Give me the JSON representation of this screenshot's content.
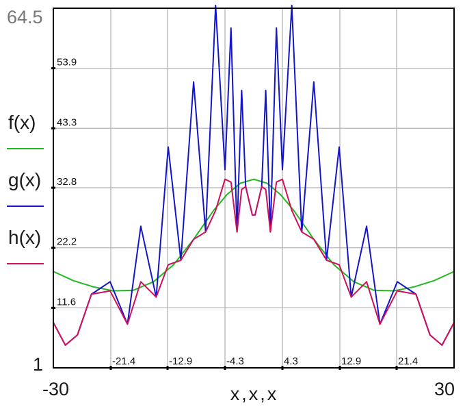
{
  "chart_data": {
    "type": "line",
    "title": "",
    "xlabel": "x,x,x",
    "xlim": [
      -30,
      30
    ],
    "ylim": [
      1,
      64.5
    ],
    "x_range_labels": {
      "min": "-30",
      "max": "30"
    },
    "y_range_labels": {
      "min": "1",
      "max": "64.5"
    },
    "x_ticks": [
      "-21.4",
      "-12.9",
      "-4.3",
      "4.3",
      "12.9",
      "21.4"
    ],
    "y_ticks": [
      "11.6",
      "22.2",
      "32.8",
      "43.3",
      "53.9"
    ],
    "grid": true,
    "legend_position": "left",
    "series": [
      {
        "name": "f(x)",
        "color": "#22b822",
        "x": [
          -30,
          -27,
          -24,
          -21,
          -18,
          -15,
          -12,
          -9,
          -6,
          -4,
          -2,
          0,
          2,
          4,
          6,
          9,
          12,
          15,
          18,
          21,
          24,
          27,
          30
        ],
        "y": [
          18.0,
          16.4,
          15.3,
          14.6,
          14.7,
          16.2,
          19.2,
          23.7,
          28.8,
          31.6,
          33.6,
          34.3,
          33.6,
          31.6,
          28.8,
          23.7,
          19.2,
          16.2,
          14.7,
          14.6,
          15.3,
          16.4,
          18.0
        ]
      },
      {
        "name": "g(x)",
        "color": "#1414c8",
        "x": [
          -30,
          -28.2,
          -26.4,
          -24.3,
          -21.5,
          -18.9,
          -16.9,
          -14.6,
          -12.8,
          -10.9,
          -9.0,
          -7.2,
          -5.7,
          -4.3,
          -3.4,
          -2.5,
          -1.8,
          -1.2,
          -0.2,
          0.2,
          1.2,
          1.8,
          2.5,
          3.4,
          4.3,
          5.7,
          7.2,
          9.0,
          10.9,
          12.8,
          14.6,
          16.9,
          18.9,
          21.5,
          24.3,
          26.4,
          28.2,
          30
        ],
        "y": [
          9.0,
          5.0,
          6.8,
          14.0,
          16.2,
          8.7,
          26.0,
          13.5,
          40.0,
          20.0,
          51.5,
          25.0,
          65.0,
          36.0,
          61.0,
          25.0,
          50.0,
          33.0,
          28.0,
          28.0,
          33.0,
          50.0,
          25.0,
          61.0,
          36.0,
          65.0,
          25.0,
          51.5,
          20.0,
          40.0,
          13.5,
          26.0,
          8.7,
          16.2,
          14.0,
          6.8,
          5.0,
          9.0
        ]
      },
      {
        "name": "h(x)",
        "color": "#d0105a",
        "x": [
          -30,
          -28.2,
          -26.4,
          -24.3,
          -21.5,
          -18.9,
          -16.9,
          -14.6,
          -12.8,
          -10.9,
          -9.0,
          -7.2,
          -5.7,
          -4.3,
          -3.4,
          -2.5,
          -1.8,
          -1.2,
          -0.2,
          0.2,
          1.2,
          1.8,
          2.5,
          3.4,
          4.3,
          5.7,
          7.2,
          9.0,
          10.9,
          12.8,
          14.6,
          16.9,
          18.9,
          21.5,
          24.3,
          26.4,
          28.2,
          30
        ],
        "y": [
          9.0,
          5.0,
          6.8,
          14.0,
          14.6,
          8.7,
          16.2,
          13.5,
          19.2,
          20.0,
          23.7,
          25.0,
          28.8,
          34.3,
          33.8,
          25.0,
          32.5,
          33.0,
          28.0,
          28.0,
          33.0,
          32.5,
          25.0,
          33.8,
          34.3,
          28.8,
          25.0,
          23.7,
          20.0,
          19.2,
          13.5,
          16.2,
          8.7,
          14.6,
          14.0,
          6.8,
          5.0,
          9.0
        ]
      }
    ]
  }
}
